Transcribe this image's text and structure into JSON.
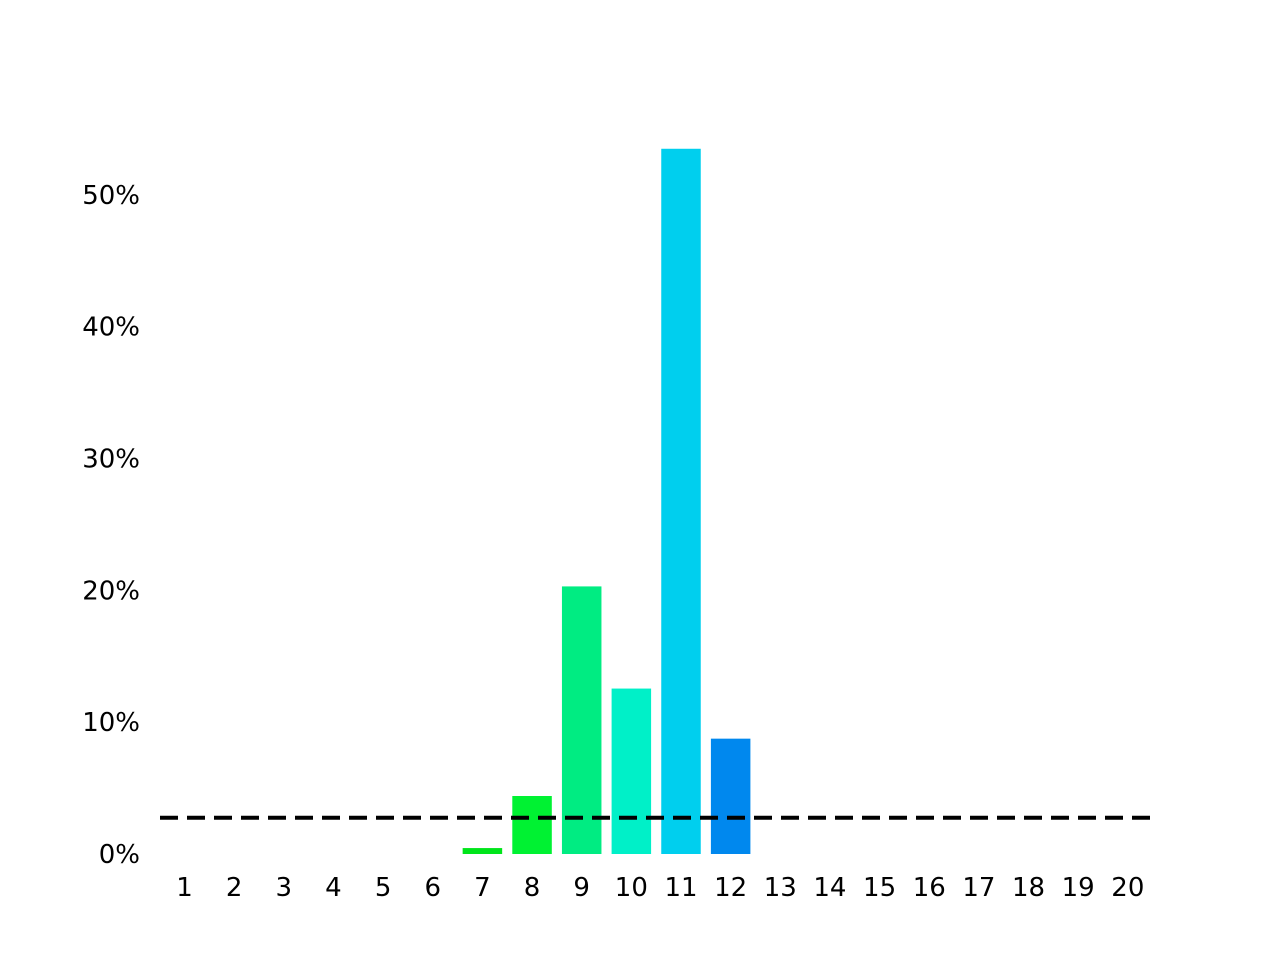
{
  "chart_data": {
    "type": "bar",
    "categories": [
      "1",
      "2",
      "3",
      "4",
      "5",
      "6",
      "7",
      "8",
      "9",
      "10",
      "11",
      "12",
      "13",
      "14",
      "15",
      "16",
      "17",
      "18",
      "19",
      "20"
    ],
    "values": [
      0,
      0,
      0,
      0,
      0,
      0,
      0.45,
      4.4,
      20.3,
      12.55,
      53.5,
      8.75,
      0,
      0,
      0,
      0,
      0,
      0,
      0,
      0
    ],
    "colors": [
      "#00e000",
      "#00e000",
      "#00e000",
      "#00e000",
      "#00e000",
      "#00e000",
      "#00e51a",
      "#00f232",
      "#00ec82",
      "#00f0c8",
      "#00cfee",
      "#0088ee",
      "#0088ee",
      "#0088ee",
      "#0088ee",
      "#0088ee",
      "#0088ee",
      "#0088ee",
      "#0088ee",
      "#0088ee"
    ],
    "y_ticks": [
      0,
      10,
      20,
      30,
      40,
      50
    ],
    "y_tick_labels": [
      "0%",
      "10%",
      "20%",
      "30%",
      "40%",
      "50%"
    ],
    "ylim": [
      0,
      55
    ],
    "reference_line": {
      "value": 2.75,
      "style": "dashed",
      "color": "#000000"
    },
    "grid": false,
    "title": "",
    "xlabel": "",
    "ylabel": ""
  }
}
